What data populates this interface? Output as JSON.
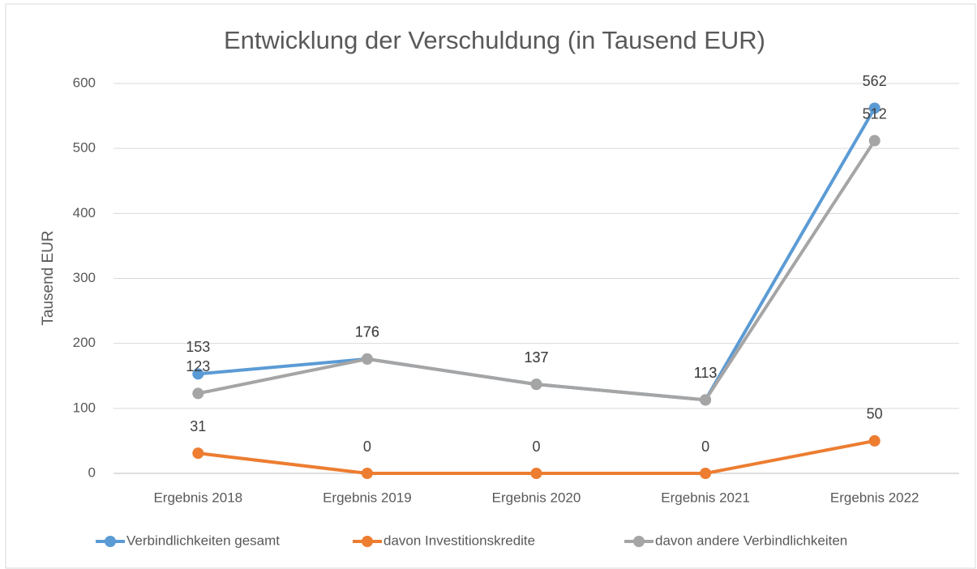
{
  "chart_data": {
    "type": "line",
    "title": "Entwicklung der Verschuldung (in Tausend EUR)",
    "ylabel": "Tausend EUR",
    "categories": [
      "Ergebnis 2018",
      "Ergebnis 2019",
      "Ergebnis 2020",
      "Ergebnis 2021",
      "Ergebnis 2022"
    ],
    "series": [
      {
        "name": "Verbindlichkeiten gesamt",
        "color": "#5b9bd5",
        "values": [
          153,
          176,
          137,
          113,
          562
        ]
      },
      {
        "name": "davon Investitionskredite",
        "color": "#ed7d31",
        "values": [
          31,
          0,
          0,
          0,
          50
        ]
      },
      {
        "name": "davon andere Verbindlichkeiten",
        "color": "#a5a5a5",
        "values": [
          123,
          176,
          137,
          113,
          512
        ]
      }
    ],
    "ylim": [
      0,
      600
    ],
    "yticks": [
      0,
      100,
      200,
      300,
      400,
      500,
      600
    ],
    "grid": true,
    "legend": "bottom"
  }
}
